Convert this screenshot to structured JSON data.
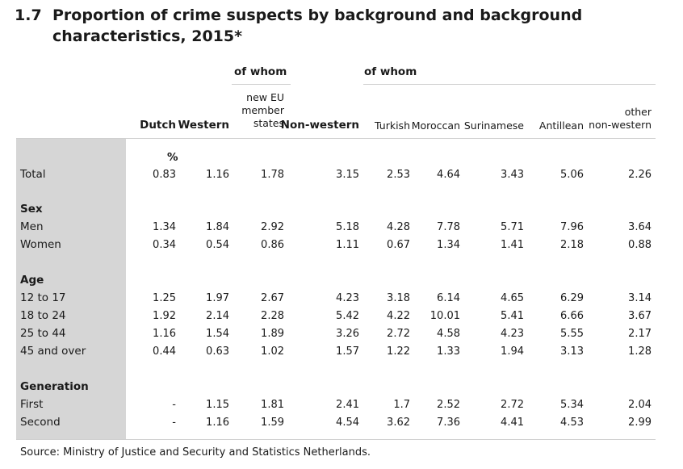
{
  "title": {
    "number": "1.7",
    "text": "Proportion of crime suspects by background and background characteristics, 2015*"
  },
  "header": {
    "of_whom_1": "of whom",
    "of_whom_2": "of whom",
    "columns": [
      "Dutch",
      "Western",
      "new EU member states",
      "Non-western",
      "Turkish",
      "Moroccan",
      "Surinamese",
      "Antillean",
      "other non-western"
    ],
    "unit": "%"
  },
  "rows": [
    {
      "label": "Total",
      "values": [
        "0.83",
        "1.16",
        "1.78",
        "3.15",
        "2.53",
        "4.64",
        "3.43",
        "5.06",
        "2.26"
      ]
    },
    {
      "label": "Sex",
      "section": true
    },
    {
      "label": "Men",
      "values": [
        "1.34",
        "1.84",
        "2.92",
        "5.18",
        "4.28",
        "7.78",
        "5.71",
        "7.96",
        "3.64"
      ]
    },
    {
      "label": "Women",
      "values": [
        "0.34",
        "0.54",
        "0.86",
        "1.11",
        "0.67",
        "1.34",
        "1.41",
        "2.18",
        "0.88"
      ]
    },
    {
      "label": "Age",
      "section": true
    },
    {
      "label": "12 to 17",
      "values": [
        "1.25",
        "1.97",
        "2.67",
        "4.23",
        "3.18",
        "6.14",
        "4.65",
        "6.29",
        "3.14"
      ]
    },
    {
      "label": "18 to 24",
      "values": [
        "1.92",
        "2.14",
        "2.28",
        "5.42",
        "4.22",
        "10.01",
        "5.41",
        "6.66",
        "3.67"
      ]
    },
    {
      "label": "25 to 44",
      "values": [
        "1.16",
        "1.54",
        "1.89",
        "3.26",
        "2.72",
        "4.58",
        "4.23",
        "5.55",
        "2.17"
      ]
    },
    {
      "label": "45 and over",
      "values": [
        "0.44",
        "0.63",
        "1.02",
        "1.57",
        "1.22",
        "1.33",
        "1.94",
        "3.13",
        "1.28"
      ]
    },
    {
      "label": "Generation",
      "section": true
    },
    {
      "label": "First",
      "values": [
        "-",
        "1.15",
        "1.81",
        "2.41",
        "1.7",
        "2.52",
        "2.72",
        "5.34",
        "2.04"
      ]
    },
    {
      "label": "Second",
      "values": [
        "-",
        "1.16",
        "1.59",
        "4.54",
        "3.62",
        "7.36",
        "4.41",
        "4.53",
        "2.99"
      ]
    }
  ],
  "source": "Source: Ministry of Justice and Security and Statistics Netherlands."
}
